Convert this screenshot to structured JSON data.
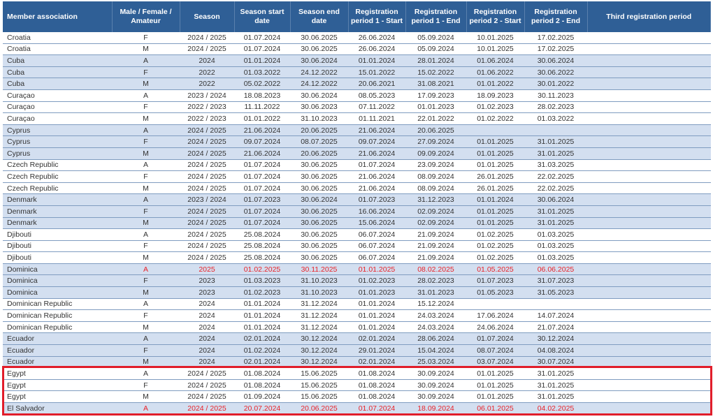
{
  "headers": [
    "Member association",
    "Male / Female / Amateur",
    "Season",
    "Season start date",
    "Season end date",
    "Registration period 1 - Start",
    "Registration period 1 - End",
    "Registration period 2 - Start",
    "Registration period 2 - End",
    "Third registration period"
  ],
  "colors": {
    "header_bg": "#2f5f96",
    "shade": "#d3dff0",
    "highlight": "#e11d2a",
    "red_text": "#e8232a"
  },
  "rows": [
    {
      "c": [
        "Croatia",
        "F",
        "2024 / 2025",
        "01.07.2024",
        "30.06.2025",
        "26.06.2024",
        "05.09.2024",
        "10.01.2025",
        "17.02.2025",
        ""
      ],
      "shade": false,
      "red": false
    },
    {
      "c": [
        "Croatia",
        "M",
        "2024 / 2025",
        "01.07.2024",
        "30.06.2025",
        "26.06.2024",
        "05.09.2024",
        "10.01.2025",
        "17.02.2025",
        ""
      ],
      "shade": false,
      "red": false
    },
    {
      "c": [
        "Cuba",
        "A",
        "2024",
        "01.01.2024",
        "30.06.2024",
        "01.01.2024",
        "28.01.2024",
        "01.06.2024",
        "30.06.2024",
        ""
      ],
      "shade": true,
      "red": false
    },
    {
      "c": [
        "Cuba",
        "F",
        "2022",
        "01.03.2022",
        "24.12.2022",
        "15.01.2022",
        "15.02.2022",
        "01.06.2022",
        "30.06.2022",
        ""
      ],
      "shade": true,
      "red": false
    },
    {
      "c": [
        "Cuba",
        "M",
        "2022",
        "05.02.2022",
        "24.12.2022",
        "20.06.2021",
        "31.08.2021",
        "01.01.2022",
        "30.01.2022",
        ""
      ],
      "shade": true,
      "red": false
    },
    {
      "c": [
        "Curaçao",
        "A",
        "2023 / 2024",
        "18.08.2023",
        "30.06.2024",
        "08.05.2023",
        "17.09.2023",
        "18.09.2023",
        "30.11.2023",
        ""
      ],
      "shade": false,
      "red": false
    },
    {
      "c": [
        "Curaçao",
        "F",
        "2022 / 2023",
        "11.11.2022",
        "30.06.2023",
        "07.11.2022",
        "01.01.2023",
        "01.02.2023",
        "28.02.2023",
        ""
      ],
      "shade": false,
      "red": false
    },
    {
      "c": [
        "Curaçao",
        "M",
        "2022 / 2023",
        "01.01.2022",
        "31.10.2023",
        "01.11.2021",
        "22.01.2022",
        "01.02.2022",
        "01.03.2022",
        ""
      ],
      "shade": false,
      "red": false
    },
    {
      "c": [
        "Cyprus",
        "A",
        "2024 / 2025",
        "21.06.2024",
        "20.06.2025",
        "21.06.2024",
        "20.06.2025",
        "",
        "",
        ""
      ],
      "shade": true,
      "red": false
    },
    {
      "c": [
        "Cyprus",
        "F",
        "2024 / 2025",
        "09.07.2024",
        "08.07.2025",
        "09.07.2024",
        "27.09.2024",
        "01.01.2025",
        "31.01.2025",
        ""
      ],
      "shade": true,
      "red": false
    },
    {
      "c": [
        "Cyprus",
        "M",
        "2024 / 2025",
        "21.06.2024",
        "20.06.2025",
        "21.06.2024",
        "09.09.2024",
        "01.01.2025",
        "31.01.2025",
        ""
      ],
      "shade": true,
      "red": false
    },
    {
      "c": [
        "Czech Republic",
        "A",
        "2024 / 2025",
        "01.07.2024",
        "30.06.2025",
        "01.07.2024",
        "23.09.2024",
        "01.01.2025",
        "31.03.2025",
        ""
      ],
      "shade": false,
      "red": false
    },
    {
      "c": [
        "Czech Republic",
        "F",
        "2024 / 2025",
        "01.07.2024",
        "30.06.2025",
        "21.06.2024",
        "08.09.2024",
        "26.01.2025",
        "22.02.2025",
        ""
      ],
      "shade": false,
      "red": false
    },
    {
      "c": [
        "Czech Republic",
        "M",
        "2024 / 2025",
        "01.07.2024",
        "30.06.2025",
        "21.06.2024",
        "08.09.2024",
        "26.01.2025",
        "22.02.2025",
        ""
      ],
      "shade": false,
      "red": false
    },
    {
      "c": [
        "Denmark",
        "A",
        "2023 / 2024",
        "01.07.2023",
        "30.06.2024",
        "01.07.2023",
        "31.12.2023",
        "01.01.2024",
        "30.06.2024",
        ""
      ],
      "shade": true,
      "red": false
    },
    {
      "c": [
        "Denmark",
        "F",
        "2024 / 2025",
        "01.07.2024",
        "30.06.2025",
        "16.06.2024",
        "02.09.2024",
        "01.01.2025",
        "31.01.2025",
        ""
      ],
      "shade": true,
      "red": false
    },
    {
      "c": [
        "Denmark",
        "M",
        "2024 / 2025",
        "01.07.2024",
        "30.06.2025",
        "15.06.2024",
        "02.09.2024",
        "01.01.2025",
        "31.01.2025",
        ""
      ],
      "shade": true,
      "red": false
    },
    {
      "c": [
        "Djibouti",
        "A",
        "2024 / 2025",
        "25.08.2024",
        "30.06.2025",
        "06.07.2024",
        "21.09.2024",
        "01.02.2025",
        "01.03.2025",
        ""
      ],
      "shade": false,
      "red": false
    },
    {
      "c": [
        "Djibouti",
        "F",
        "2024 / 2025",
        "25.08.2024",
        "30.06.2025",
        "06.07.2024",
        "21.09.2024",
        "01.02.2025",
        "01.03.2025",
        ""
      ],
      "shade": false,
      "red": false
    },
    {
      "c": [
        "Djibouti",
        "M",
        "2024 / 2025",
        "25.08.2024",
        "30.06.2025",
        "06.07.2024",
        "21.09.2024",
        "01.02.2025",
        "01.03.2025",
        ""
      ],
      "shade": false,
      "red": false
    },
    {
      "c": [
        "Dominica",
        "A",
        "2025",
        "01.02.2025",
        "30.11.2025",
        "01.01.2025",
        "08.02.2025",
        "01.05.2025",
        "06.06.2025",
        ""
      ],
      "shade": true,
      "red": true
    },
    {
      "c": [
        "Dominica",
        "F",
        "2023",
        "01.03.2023",
        "31.10.2023",
        "01.02.2023",
        "28.02.2023",
        "01.07.2023",
        "31.07.2023",
        ""
      ],
      "shade": true,
      "red": false
    },
    {
      "c": [
        "Dominica",
        "M",
        "2023",
        "01.02.2023",
        "31.10.2023",
        "01.01.2023",
        "31.01.2023",
        "01.05.2023",
        "31.05.2023",
        ""
      ],
      "shade": true,
      "red": false
    },
    {
      "c": [
        "Dominican Republic",
        "A",
        "2024",
        "01.01.2024",
        "31.12.2024",
        "01.01.2024",
        "15.12.2024",
        "",
        "",
        ""
      ],
      "shade": false,
      "red": false
    },
    {
      "c": [
        "Dominican Republic",
        "F",
        "2024",
        "01.01.2024",
        "31.12.2024",
        "01.01.2024",
        "24.03.2024",
        "17.06.2024",
        "14.07.2024",
        ""
      ],
      "shade": false,
      "red": false
    },
    {
      "c": [
        "Dominican Republic",
        "M",
        "2024",
        "01.01.2024",
        "31.12.2024",
        "01.01.2024",
        "24.03.2024",
        "24.06.2024",
        "21.07.2024",
        ""
      ],
      "shade": false,
      "red": false
    },
    {
      "c": [
        "Ecuador",
        "A",
        "2024",
        "02.01.2024",
        "30.12.2024",
        "02.01.2024",
        "28.06.2024",
        "01.07.2024",
        "30.12.2024",
        ""
      ],
      "shade": true,
      "red": false
    },
    {
      "c": [
        "Ecuador",
        "F",
        "2024",
        "01.02.2024",
        "30.12.2024",
        "29.01.2024",
        "15.04.2024",
        "08.07.2024",
        "04.08.2024",
        ""
      ],
      "shade": true,
      "red": false
    },
    {
      "c": [
        "Ecuador",
        "M",
        "2024",
        "02.01.2024",
        "30.12.2024",
        "02.01.2024",
        "25.03.2024",
        "03.07.2024",
        "30.07.2024",
        ""
      ],
      "shade": true,
      "red": false
    },
    {
      "c": [
        "Egypt",
        "A",
        "2024 / 2025",
        "01.08.2024",
        "15.06.2025",
        "01.08.2024",
        "30.09.2024",
        "01.01.2025",
        "31.01.2025",
        ""
      ],
      "shade": false,
      "red": false
    },
    {
      "c": [
        "Egypt",
        "F",
        "2024 / 2025",
        "01.08.2024",
        "15.06.2025",
        "01.08.2024",
        "30.09.2024",
        "01.01.2025",
        "31.01.2025",
        ""
      ],
      "shade": false,
      "red": false
    },
    {
      "c": [
        "Egypt",
        "M",
        "2024 / 2025",
        "01.09.2024",
        "15.06.2025",
        "01.08.2024",
        "30.09.2024",
        "01.01.2025",
        "31.01.2025",
        ""
      ],
      "shade": false,
      "red": false
    },
    {
      "c": [
        "El Salvador",
        "A",
        "2024 / 2025",
        "20.07.2024",
        "20.06.2025",
        "01.07.2024",
        "18.09.2024",
        "06.01.2025",
        "04.02.2025",
        ""
      ],
      "shade": true,
      "red": true
    }
  ]
}
